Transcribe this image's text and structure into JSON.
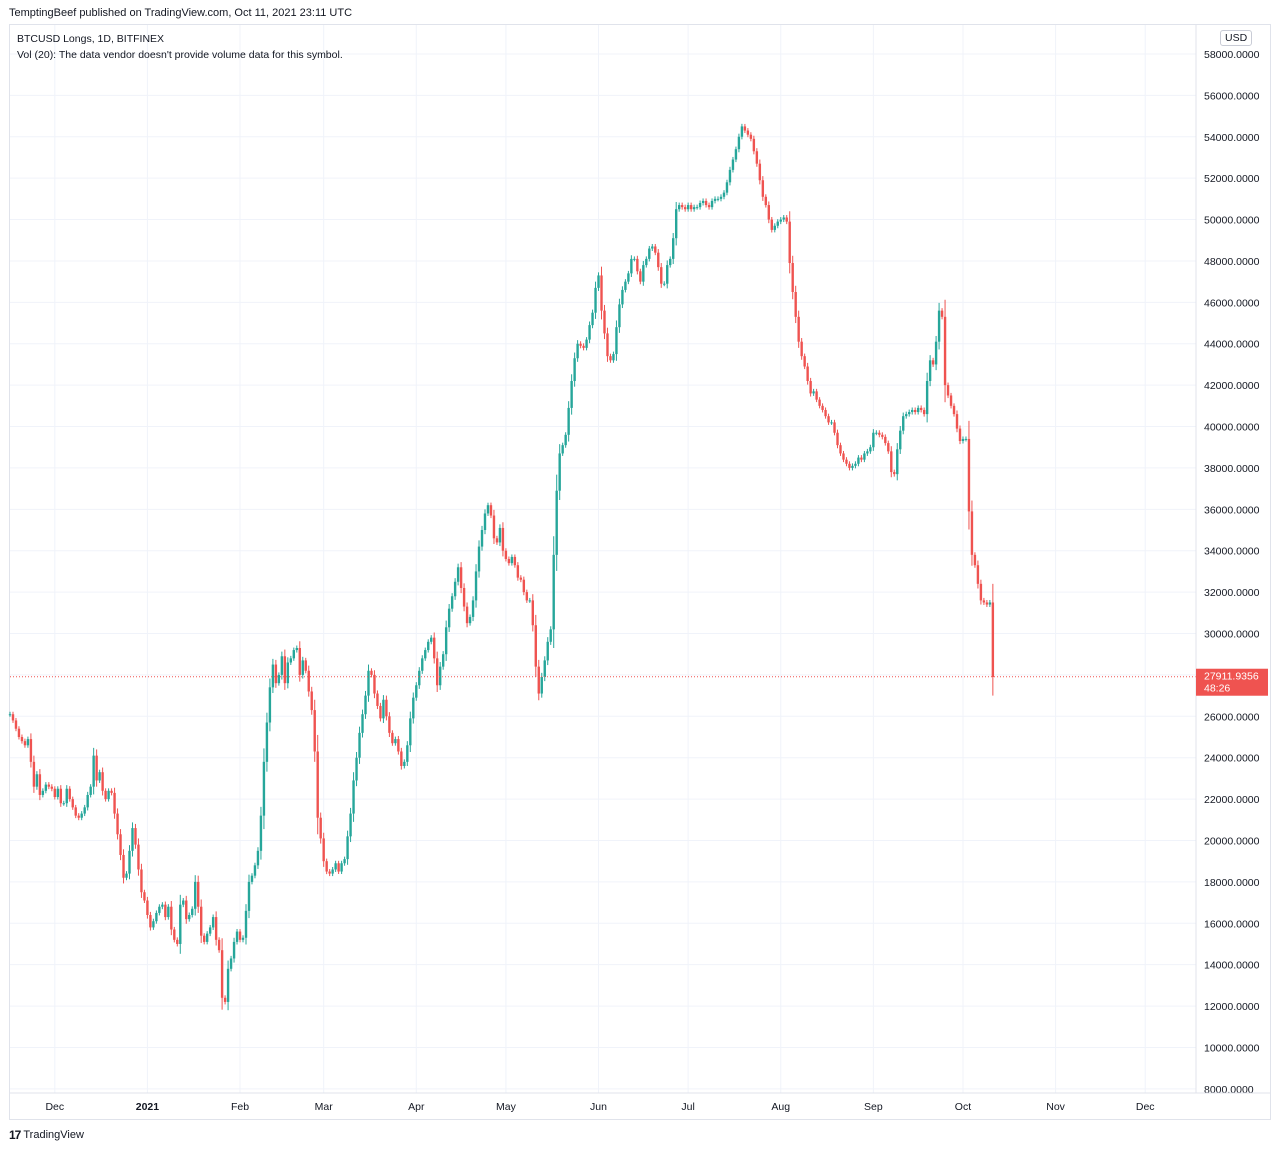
{
  "header": {
    "publish_line": "TemptingBeef published on TradingView.com, Oct 11, 2021 23:11 UTC"
  },
  "legend": {
    "symbol_line": "BTCUSD Longs, 1D, BITFINEX",
    "volume_line": "Vol (20): The data vendor doesn't provide volume data for this symbol."
  },
  "currency_label": "USD",
  "footer": {
    "logo_text": "TradingView",
    "logo_mark": "17"
  },
  "colors": {
    "up": "#26a69a",
    "down": "#ef5350",
    "grid": "#f0f3fa",
    "last_line": "#ef5350"
  },
  "chart_data": {
    "type": "candlestick",
    "y_axis": {
      "ylim": [
        7800,
        59400
      ],
      "ticks": [
        8000,
        10000,
        12000,
        14000,
        16000,
        18000,
        20000,
        22000,
        24000,
        26000,
        28000,
        30000,
        32000,
        34000,
        36000,
        38000,
        40000,
        42000,
        44000,
        46000,
        48000,
        50000,
        52000,
        54000,
        56000,
        58000
      ],
      "tick_labels": [
        "8000.0000",
        "10000.0000",
        "12000.0000",
        "14000.0000",
        "16000.0000",
        "18000.0000",
        "20000.0000",
        "22000.0000",
        "24000.0000",
        "26000.0000",
        "28000.0000",
        "30000.0000",
        "32000.0000",
        "34000.0000",
        "36000.0000",
        "38000.0000",
        "40000.0000",
        "42000.0000",
        "44000.0000",
        "46000.0000",
        "48000.0000",
        "50000.0000",
        "52000.0000",
        "54000.0000",
        "56000.0000",
        "58000.0000"
      ]
    },
    "x_axis": {
      "start": "2020-11-16",
      "end": "2021-12-18",
      "labels": [
        {
          "date": "2020-12-01",
          "text": "Dec"
        },
        {
          "date": "2021-01-01",
          "text": "2021",
          "bold": true
        },
        {
          "date": "2021-02-01",
          "text": "Feb"
        },
        {
          "date": "2021-03-01",
          "text": "Mar"
        },
        {
          "date": "2021-04-01",
          "text": "Apr"
        },
        {
          "date": "2021-05-01",
          "text": "May"
        },
        {
          "date": "2021-06-01",
          "text": "Jun"
        },
        {
          "date": "2021-07-01",
          "text": "Jul"
        },
        {
          "date": "2021-08-01",
          "text": "Aug"
        },
        {
          "date": "2021-09-01",
          "text": "Sep"
        },
        {
          "date": "2021-10-01",
          "text": "Oct"
        },
        {
          "date": "2021-11-01",
          "text": "Nov"
        },
        {
          "date": "2021-12-01",
          "text": "Dec"
        }
      ]
    },
    "first_date": "2020-11-16",
    "closes": [
      26100,
      25800,
      25400,
      25000,
      24800,
      24600,
      24900,
      23800,
      22600,
      23200,
      22200,
      22400,
      22700,
      22600,
      22500,
      22100,
      22500,
      21800,
      21800,
      22500,
      22000,
      21600,
      21200,
      21100,
      21300,
      21600,
      22200,
      22600,
      24100,
      22900,
      23300,
      22400,
      22000,
      22400,
      22300,
      21300,
      20300,
      19300,
      18200,
      18400,
      19500,
      20600,
      19800,
      18600,
      17500,
      17100,
      16400,
      15800,
      16100,
      16500,
      16800,
      16900,
      16300,
      16800,
      15700,
      15200,
      15000,
      16900,
      17100,
      16200,
      16400,
      16700,
      18000,
      16800,
      15400,
      15100,
      15500,
      15800,
      16300,
      15200,
      14700,
      12400,
      12200,
      13800,
      14300,
      15100,
      15600,
      15200,
      15300,
      16600,
      18000,
      18300,
      18800,
      19500,
      21200,
      23800,
      25700,
      27400,
      28500,
      27600,
      28000,
      28900,
      27600,
      28600,
      28800,
      29200,
      29300,
      28000,
      28700,
      28200,
      27200,
      26300,
      24300,
      21100,
      20100,
      19000,
      18500,
      18400,
      18600,
      18900,
      18500,
      18900,
      19100,
      20200,
      21300,
      22900,
      24000,
      25200,
      26100,
      27000,
      28200,
      28000,
      27100,
      26500,
      25900,
      26800,
      26000,
      25200,
      24700,
      24900,
      24300,
      23600,
      23800,
      24600,
      25900,
      26900,
      27500,
      28200,
      28800,
      29200,
      29600,
      29800,
      28800,
      27500,
      28400,
      29000,
      30300,
      31200,
      31800,
      32500,
      33200,
      32200,
      31300,
      30500,
      30800,
      31600,
      33000,
      34200,
      35000,
      35800,
      36200,
      35700,
      34600,
      34400,
      35100,
      34000,
      33600,
      33400,
      33700,
      33300,
      32700,
      32600,
      32000,
      31600,
      31600,
      30400,
      28400,
      27100,
      27900,
      28700,
      29600,
      30200,
      33800,
      36900,
      38700,
      39100,
      39600,
      40900,
      42200,
      43300,
      44000,
      43900,
      43800,
      44200,
      44900,
      45500,
      46700,
      47300,
      45600,
      44500,
      43400,
      43200,
      43500,
      44800,
      45900,
      46600,
      47000,
      47400,
      48100,
      48100,
      47500,
      47000,
      47800,
      48100,
      48600,
      48700,
      48400,
      47700,
      46900,
      46900,
      47800,
      48100,
      49100,
      50500,
      50700,
      50600,
      50500,
      50700,
      50500,
      50600,
      50600,
      50800,
      50900,
      50700,
      50600,
      50900,
      51000,
      51000,
      51100,
      51300,
      51800,
      52400,
      52900,
      53400,
      54000,
      54500,
      54300,
      54100,
      53900,
      53300,
      52700,
      51900,
      51100,
      50700,
      50000,
      49500,
      49700,
      49900,
      50000,
      50100,
      49900,
      47900,
      46500,
      45300,
      44100,
      43400,
      42900,
      42200,
      41600,
      41700,
      41300,
      41000,
      40800,
      40500,
      40200,
      40200,
      39700,
      39100,
      38700,
      38400,
      38200,
      38000,
      38100,
      38200,
      38500,
      38400,
      38700,
      38800,
      39000,
      39700,
      39700,
      39600,
      39500,
      39200,
      38800,
      37800,
      37700,
      38900,
      39800,
      40500,
      40600,
      40700,
      40800,
      40700,
      40900,
      40800,
      40600,
      42200,
      43200,
      43000,
      44100,
      45600,
      45300,
      42000,
      41500,
      41000,
      40600,
      39900,
      39300,
      39400,
      39400,
      35900,
      33800,
      33300,
      32400,
      31600,
      31500,
      31400,
      31500,
      27900
    ],
    "last_price": "27911.9356",
    "countdown": "48:26"
  }
}
